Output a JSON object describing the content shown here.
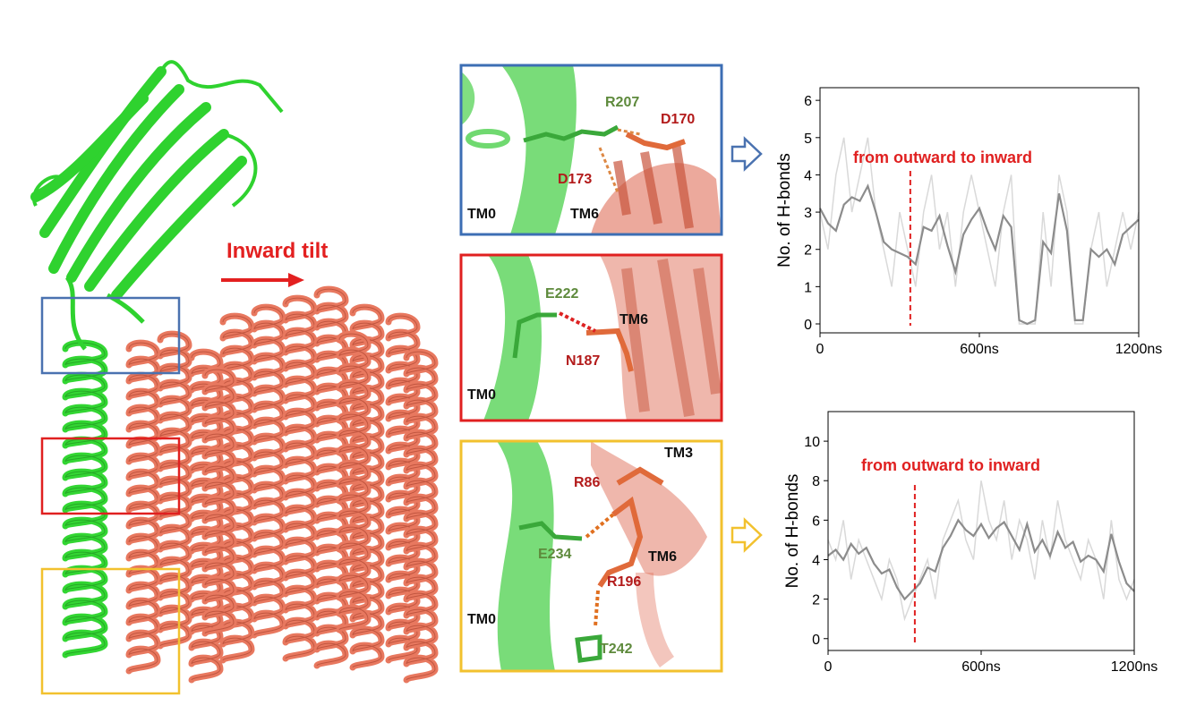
{
  "figure": {
    "tilt_label": "Inward tilt",
    "panel_top": {
      "labels": [
        "R207",
        "D170",
        "D173",
        "TM0",
        "TM6"
      ]
    },
    "panel_middle": {
      "labels": [
        "E222",
        "TM6",
        "N187",
        "TM0"
      ]
    },
    "panel_bottom": {
      "labels": [
        "TM3",
        "R86",
        "E234",
        "TM6",
        "R196",
        "TM0",
        "T242"
      ]
    }
  },
  "chart_data": [
    {
      "type": "line",
      "ylabel": "No. of H-bonds",
      "annotation": "from outward to inward",
      "annotation_x": 340,
      "xlim": [
        0,
        1200
      ],
      "ylim": [
        -0.24,
        6.34
      ],
      "xticks": [
        0,
        {
          "value": 600,
          "label": "600ns"
        },
        {
          "value": 1200,
          "label": "1200ns"
        }
      ],
      "yticks": [
        0,
        1,
        2,
        3,
        4,
        5,
        6
      ],
      "x": [
        0,
        30,
        60,
        90,
        120,
        150,
        180,
        210,
        240,
        270,
        300,
        330,
        360,
        390,
        420,
        450,
        480,
        510,
        540,
        570,
        600,
        630,
        660,
        690,
        720,
        750,
        780,
        810,
        840,
        870,
        900,
        930,
        960,
        990,
        1020,
        1050,
        1080,
        1110,
        1140,
        1170,
        1200
      ],
      "series": [
        {
          "name": "raw",
          "color": "#d9d9d9",
          "values": [
            3,
            2,
            4,
            5,
            3,
            4,
            5,
            3,
            2,
            1,
            3,
            2,
            1,
            3,
            4,
            2,
            3,
            1,
            3,
            4,
            3,
            2,
            1,
            3,
            4,
            0,
            0,
            0,
            3,
            1,
            4,
            3,
            0,
            0,
            2,
            3,
            1,
            2,
            3,
            2,
            3
          ]
        },
        {
          "name": "average",
          "color": "#8c8c8c",
          "values": [
            3.1,
            2.7,
            2.5,
            3.2,
            3.4,
            3.3,
            3.7,
            3.0,
            2.2,
            2.0,
            1.9,
            1.8,
            1.6,
            2.6,
            2.5,
            2.9,
            2.1,
            1.4,
            2.4,
            2.8,
            3.1,
            2.5,
            2.0,
            2.9,
            2.6,
            0.1,
            0,
            0.1,
            2.2,
            1.9,
            3.5,
            2.5,
            0.1,
            0.1,
            2.0,
            1.8,
            2.0,
            1.6,
            2.4,
            2.6,
            2.8
          ]
        }
      ]
    },
    {
      "type": "line",
      "ylabel": "No. of H-bonds",
      "annotation": "from outward to inward",
      "annotation_x": 340,
      "xlim": [
        0,
        1200
      ],
      "ylim": [
        -0.6,
        11.5
      ],
      "xticks": [
        0,
        {
          "value": 600,
          "label": "600ns"
        },
        {
          "value": 1200,
          "label": "1200ns"
        }
      ],
      "yticks": [
        0,
        2,
        4,
        6,
        8,
        10
      ],
      "x": [
        0,
        30,
        60,
        90,
        120,
        150,
        180,
        210,
        240,
        270,
        300,
        330,
        360,
        390,
        420,
        450,
        480,
        510,
        540,
        570,
        600,
        630,
        660,
        690,
        720,
        750,
        780,
        810,
        840,
        870,
        900,
        930,
        960,
        990,
        1020,
        1050,
        1080,
        1110,
        1140,
        1170,
        1200
      ],
      "series": [
        {
          "name": "raw",
          "color": "#d9d9d9",
          "values": [
            5,
            4,
            6,
            3,
            5,
            4,
            3,
            2,
            4,
            3,
            1,
            2,
            3,
            4,
            2,
            5,
            6,
            7,
            5,
            4,
            8,
            6,
            5,
            7,
            4,
            6,
            5,
            3,
            6,
            4,
            7,
            5,
            4,
            3,
            5,
            4,
            2,
            6,
            3,
            2,
            3
          ]
        },
        {
          "name": "average",
          "color": "#8c8c8c",
          "values": [
            4.2,
            4.5,
            4.0,
            4.8,
            4.3,
            4.6,
            3.8,
            3.3,
            3.5,
            2.6,
            2.0,
            2.4,
            2.8,
            3.6,
            3.4,
            4.6,
            5.2,
            6.0,
            5.5,
            5.2,
            5.8,
            5.1,
            5.6,
            5.9,
            5.2,
            4.5,
            5.8,
            4.4,
            5.0,
            4.2,
            5.4,
            4.6,
            4.9,
            3.9,
            4.2,
            4.0,
            3.4,
            5.3,
            3.9,
            2.8,
            2.4
          ]
        }
      ]
    }
  ]
}
